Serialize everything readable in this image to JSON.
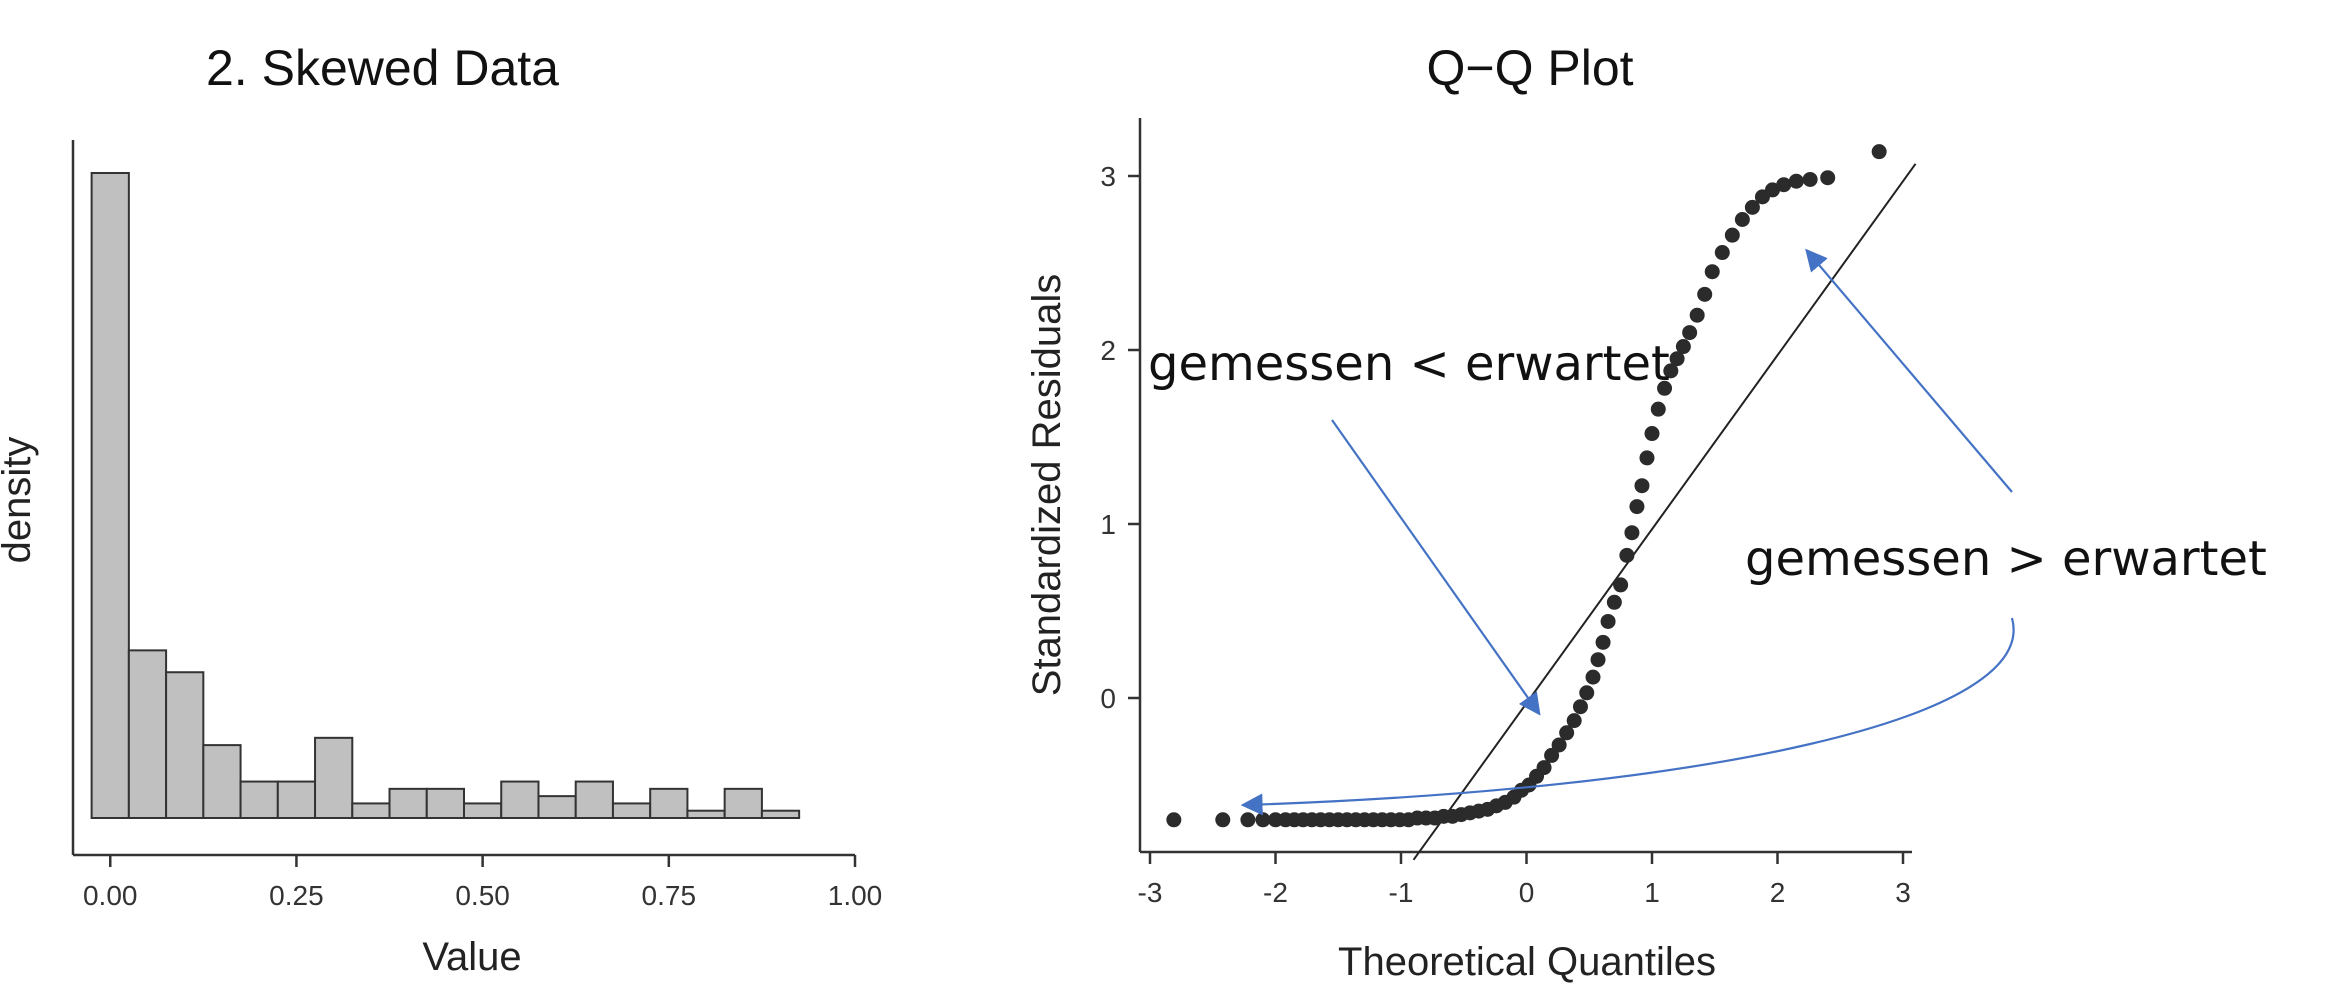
{
  "chart_data": [
    {
      "type": "bar",
      "title": "2. Skewed Data",
      "xlabel": "Value",
      "ylabel": "density",
      "xlim": [
        -0.05,
        1.0
      ],
      "xticks": [
        "0.00",
        "0.25",
        "0.50",
        "0.75",
        "1.00"
      ],
      "xtick_values": [
        0,
        0.25,
        0.5,
        0.75,
        1.0
      ],
      "y_tick_labels_shown": false,
      "grid": false,
      "bar_color": "#c0c0c0",
      "bar_edge_color": "#333333",
      "bin_width": 0.05,
      "bins": [
        {
          "start": -0.025,
          "value": 17.7
        },
        {
          "start": 0.025,
          "value": 4.6
        },
        {
          "start": 0.075,
          "value": 4.0
        },
        {
          "start": 0.125,
          "value": 2.0
        },
        {
          "start": 0.175,
          "value": 1.0
        },
        {
          "start": 0.225,
          "value": 1.0
        },
        {
          "start": 0.275,
          "value": 2.2
        },
        {
          "start": 0.325,
          "value": 0.4
        },
        {
          "start": 0.375,
          "value": 0.8
        },
        {
          "start": 0.425,
          "value": 0.8
        },
        {
          "start": 0.475,
          "value": 0.4
        },
        {
          "start": 0.525,
          "value": 1.0
        },
        {
          "start": 0.575,
          "value": 0.6
        },
        {
          "start": 0.625,
          "value": 1.0
        },
        {
          "start": 0.675,
          "value": 0.4
        },
        {
          "start": 0.725,
          "value": 0.8
        },
        {
          "start": 0.775,
          "value": 0.2
        },
        {
          "start": 0.825,
          "value": 0.8
        },
        {
          "start": 0.875,
          "value": 0.2
        }
      ]
    },
    {
      "type": "scatter",
      "title": "Q−Q Plot",
      "xlabel": "Theoretical Quantiles",
      "ylabel": "Standardized Residuals",
      "xlim": [
        -3.05,
        3.05
      ],
      "ylim": [
        -0.9,
        3.3
      ],
      "xticks": [
        "-3",
        "-2",
        "-1",
        "0",
        "1",
        "2",
        "3"
      ],
      "xtick_values": [
        -3,
        -2,
        -1,
        0,
        1,
        2,
        3
      ],
      "yticks": [
        "0",
        "1",
        "2",
        "3"
      ],
      "ytick_values": [
        0,
        1,
        2,
        3
      ],
      "grid": false,
      "point_color": "#2b2b2b",
      "reference_line": {
        "slope": 1.0,
        "intercept": -0.03,
        "x_from": -0.9,
        "x_to": 3.1,
        "color": "#222222"
      },
      "points": [
        [
          -2.81,
          -0.7
        ],
        [
          -2.42,
          -0.7
        ],
        [
          -2.22,
          -0.7
        ],
        [
          -2.1,
          -0.7
        ],
        [
          -2.0,
          -0.7
        ],
        [
          -1.92,
          -0.7
        ],
        [
          -1.85,
          -0.7
        ],
        [
          -1.78,
          -0.7
        ],
        [
          -1.71,
          -0.7
        ],
        [
          -1.64,
          -0.7
        ],
        [
          -1.57,
          -0.7
        ],
        [
          -1.5,
          -0.7
        ],
        [
          -1.43,
          -0.7
        ],
        [
          -1.36,
          -0.7
        ],
        [
          -1.29,
          -0.7
        ],
        [
          -1.22,
          -0.7
        ],
        [
          -1.15,
          -0.7
        ],
        [
          -1.08,
          -0.7
        ],
        [
          -1.01,
          -0.7
        ],
        [
          -0.94,
          -0.7
        ],
        [
          -0.87,
          -0.69
        ],
        [
          -0.8,
          -0.69
        ],
        [
          -0.73,
          -0.69
        ],
        [
          -0.66,
          -0.68
        ],
        [
          -0.59,
          -0.68
        ],
        [
          -0.52,
          -0.67
        ],
        [
          -0.45,
          -0.66
        ],
        [
          -0.38,
          -0.65
        ],
        [
          -0.31,
          -0.64
        ],
        [
          -0.24,
          -0.62
        ],
        [
          -0.17,
          -0.6
        ],
        [
          -0.1,
          -0.57
        ],
        [
          -0.04,
          -0.53
        ],
        [
          0.02,
          -0.5
        ],
        [
          0.08,
          -0.45
        ],
        [
          0.14,
          -0.4
        ],
        [
          0.2,
          -0.33
        ],
        [
          0.26,
          -0.27
        ],
        [
          0.32,
          -0.2
        ],
        [
          0.38,
          -0.13
        ],
        [
          0.43,
          -0.05
        ],
        [
          0.48,
          0.03
        ],
        [
          0.53,
          0.12
        ],
        [
          0.57,
          0.22
        ],
        [
          0.61,
          0.32
        ],
        [
          0.65,
          0.44
        ],
        [
          0.7,
          0.55
        ],
        [
          0.75,
          0.65
        ],
        [
          0.8,
          0.82
        ],
        [
          0.84,
          0.95
        ],
        [
          0.88,
          1.1
        ],
        [
          0.92,
          1.22
        ],
        [
          0.96,
          1.38
        ],
        [
          1.0,
          1.52
        ],
        [
          1.05,
          1.66
        ],
        [
          1.1,
          1.78
        ],
        [
          1.15,
          1.88
        ],
        [
          1.2,
          1.95
        ],
        [
          1.25,
          2.02
        ],
        [
          1.3,
          2.1
        ],
        [
          1.36,
          2.2
        ],
        [
          1.42,
          2.32
        ],
        [
          1.48,
          2.45
        ],
        [
          1.56,
          2.56
        ],
        [
          1.64,
          2.66
        ],
        [
          1.72,
          2.75
        ],
        [
          1.8,
          2.82
        ],
        [
          1.88,
          2.88
        ],
        [
          1.96,
          2.92
        ],
        [
          2.05,
          2.95
        ],
        [
          2.15,
          2.97
        ],
        [
          2.26,
          2.98
        ],
        [
          2.4,
          2.99
        ],
        [
          2.81,
          3.14
        ]
      ],
      "annotations": [
        {
          "text": "gemessen < erwartet"
        },
        {
          "text": "gemessen > erwartet"
        }
      ],
      "annotation_arrow_color": "#4472c4"
    }
  ]
}
